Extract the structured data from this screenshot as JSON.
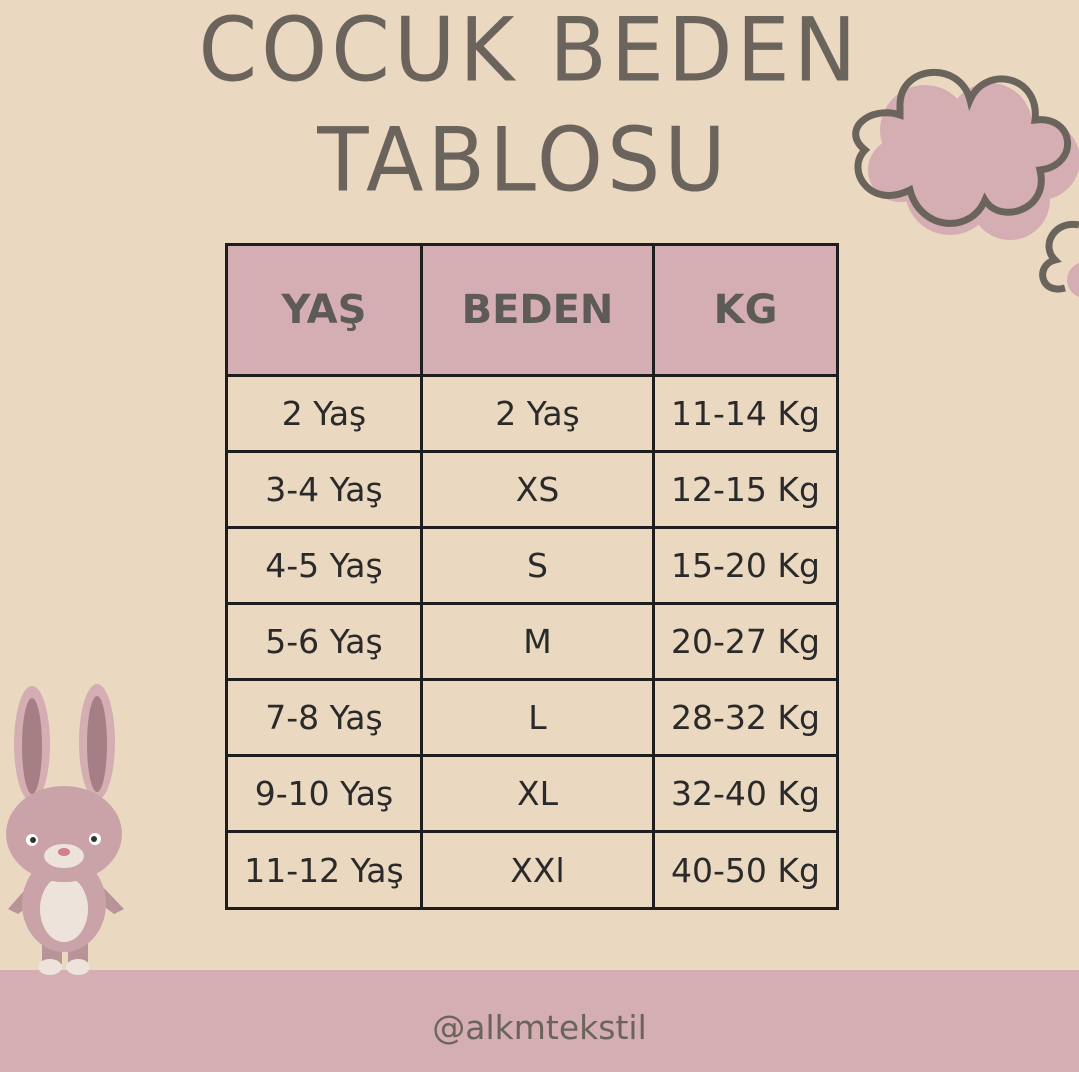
{
  "title": {
    "line1": "COCUK BEDEN",
    "line2": "TABLOSU"
  },
  "table": {
    "headers": [
      "YAŞ",
      "BEDEN",
      "KG"
    ],
    "rows": [
      [
        "2 Yaş",
        "2 Yaş",
        "11-14 Kg"
      ],
      [
        "3-4 Yaş",
        "XS",
        "12-15 Kg"
      ],
      [
        "4-5 Yaş",
        "S",
        "15-20 Kg"
      ],
      [
        "5-6 Yaş",
        "M",
        "20-27 Kg"
      ],
      [
        "7-8 Yaş",
        "L",
        "28-32 Kg"
      ],
      [
        "9-10 Yaş",
        "XL",
        "32-40 Kg"
      ],
      [
        "11-12 Yaş",
        "XXl",
        "40-50 Kg"
      ]
    ]
  },
  "footer": {
    "handle": "@alkmtekstil"
  },
  "colors": {
    "background": "#ead9c0",
    "accent_pink": "#d5aeb3",
    "title_text": "#6b645d"
  },
  "decorations": [
    "cloud-icon",
    "bunny-illustration"
  ]
}
